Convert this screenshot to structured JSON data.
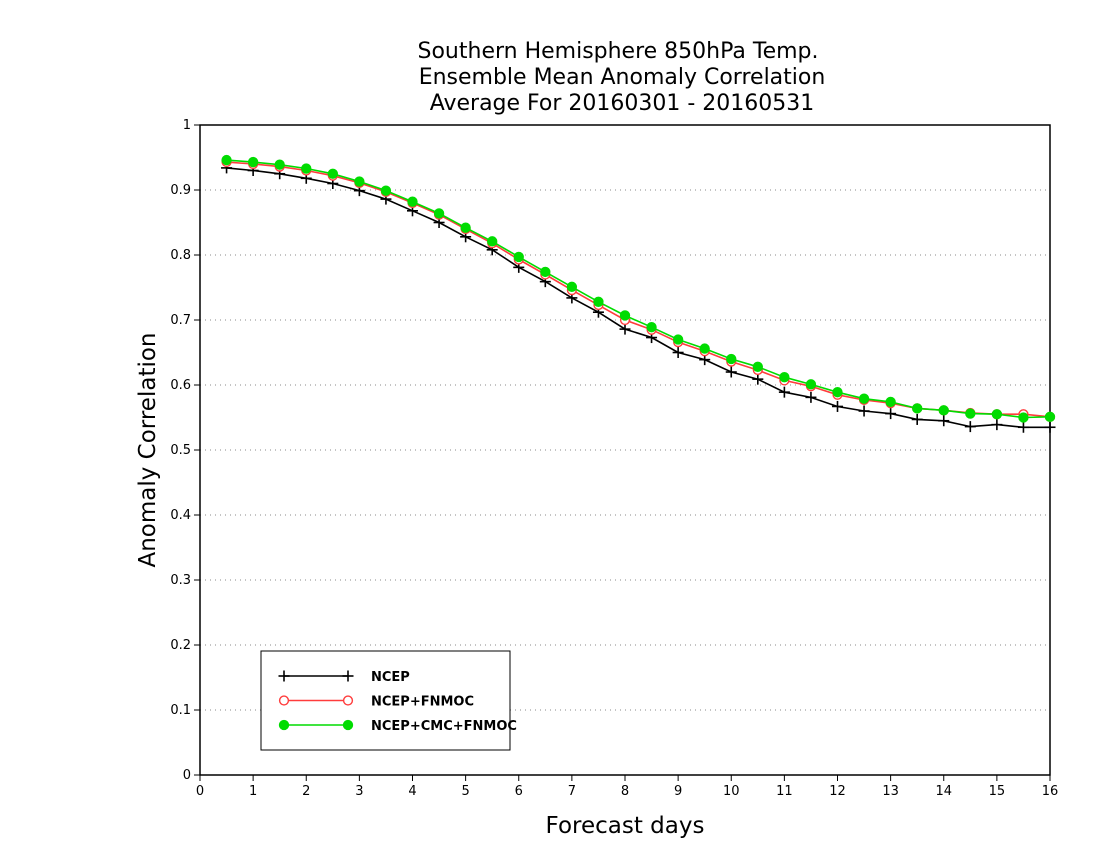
{
  "chart_data": {
    "type": "line",
    "title": [
      "Southern Hemisphere 850hPa Temp.",
      "Ensemble Mean Anomaly Correlation",
      "Average For 20160301 - 20160531"
    ],
    "xlabel": "Forecast days",
    "ylabel": "Anomaly Correlation",
    "xlim": [
      0,
      16
    ],
    "ylim": [
      0,
      1
    ],
    "x_ticks": [
      "0",
      "1",
      "2",
      "3",
      "4",
      "5",
      "6",
      "7",
      "8",
      "9",
      "10",
      "11",
      "12",
      "13",
      "14",
      "15",
      "16"
    ],
    "y_ticks": [
      "0",
      "0.1",
      "0.2",
      "0.3",
      "0.4",
      "0.5",
      "0.6",
      "0.7",
      "0.8",
      "0.9",
      "1"
    ],
    "grid": "horizontal dotted",
    "legend_position": "bottom-left",
    "x": [
      0.5,
      1,
      1.5,
      2,
      2.5,
      3,
      3.5,
      4,
      4.5,
      5,
      5.5,
      6,
      6.5,
      7,
      7.5,
      8,
      8.5,
      9,
      9.5,
      10,
      10.5,
      11,
      11.5,
      12,
      12.5,
      13,
      13.5,
      14,
      14.5,
      15,
      15.5,
      16
    ],
    "series": [
      {
        "name": "NCEP",
        "color": "#000000",
        "marker": "plus",
        "values": [
          0.934,
          0.93,
          0.925,
          0.918,
          0.91,
          0.899,
          0.886,
          0.868,
          0.85,
          0.828,
          0.808,
          0.781,
          0.759,
          0.734,
          0.712,
          0.686,
          0.673,
          0.65,
          0.639,
          0.62,
          0.609,
          0.589,
          0.581,
          0.567,
          0.56,
          0.556,
          0.547,
          0.545,
          0.536,
          0.539,
          0.535,
          0.535
        ]
      },
      {
        "name": "NCEP+FNMOC",
        "color": "#ff3c3c",
        "marker": "open-circle",
        "values": [
          0.943,
          0.94,
          0.936,
          0.93,
          0.922,
          0.911,
          0.897,
          0.88,
          0.862,
          0.84,
          0.818,
          0.793,
          0.77,
          0.746,
          0.723,
          0.7,
          0.685,
          0.666,
          0.652,
          0.636,
          0.623,
          0.607,
          0.598,
          0.585,
          0.577,
          0.572,
          0.564,
          0.561,
          0.557,
          0.555,
          0.555,
          0.551
        ]
      },
      {
        "name": "NCEP+CMC+FNMOC",
        "color": "#00dc00",
        "marker": "filled-circle",
        "values": [
          0.946,
          0.943,
          0.939,
          0.933,
          0.925,
          0.913,
          0.899,
          0.882,
          0.864,
          0.842,
          0.821,
          0.797,
          0.774,
          0.751,
          0.728,
          0.707,
          0.689,
          0.67,
          0.656,
          0.64,
          0.628,
          0.612,
          0.601,
          0.589,
          0.579,
          0.574,
          0.564,
          0.561,
          0.556,
          0.555,
          0.55,
          0.551
        ]
      }
    ]
  }
}
